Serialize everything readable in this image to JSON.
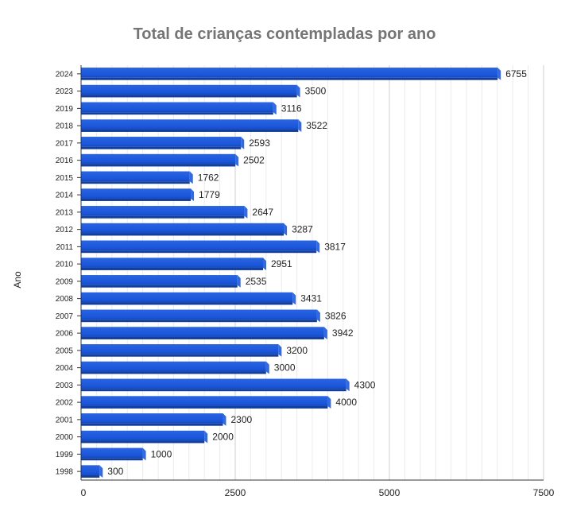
{
  "chart_data": {
    "type": "bar",
    "orientation": "horizontal",
    "title": "Total de crianças contempladas por ano",
    "xlabel": "",
    "ylabel": "Ano",
    "xlim": [
      0,
      7500
    ],
    "x_ticks": [
      "0",
      "2500",
      "5000",
      "7500"
    ],
    "grid": true,
    "legend": "none",
    "bar_color": "#1a56db",
    "categories": [
      "2024",
      "2023",
      "2019",
      "2018",
      "2017",
      "2016",
      "2015",
      "2014",
      "2013",
      "2012",
      "2011",
      "2010",
      "2009",
      "2008",
      "2007",
      "2006",
      "2005",
      "2004",
      "2003",
      "2002",
      "2001",
      "2000",
      "1999",
      "1998"
    ],
    "values": [
      6755,
      3500,
      3116,
      3522,
      2593,
      2502,
      1762,
      1779,
      2647,
      3287,
      3817,
      2951,
      2535,
      3431,
      3826,
      3942,
      3200,
      3000,
      4300,
      4000,
      2300,
      2000,
      1000,
      300
    ]
  }
}
